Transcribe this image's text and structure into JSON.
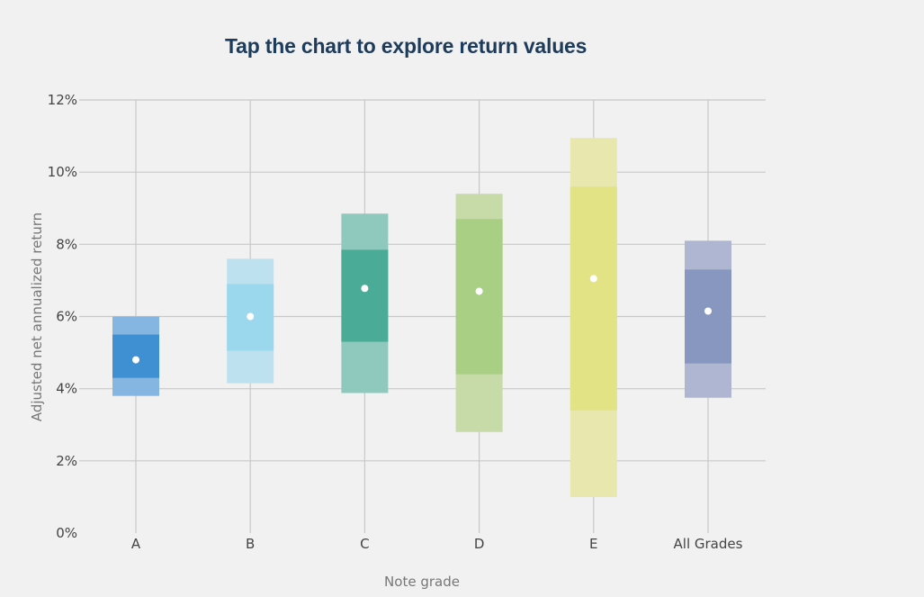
{
  "chart_data": {
    "type": "box",
    "title": "Tap the chart to explore return values",
    "xlabel": "Note grade",
    "ylabel": "Adjusted net annualized return",
    "y_unit": "%",
    "ylim": [
      0,
      12
    ],
    "yticks": [
      0,
      2,
      4,
      6,
      8,
      10,
      12
    ],
    "ytick_labels": [
      "0%",
      "2%",
      "4%",
      "6%",
      "8%",
      "10%",
      "12%"
    ],
    "grid": true,
    "categories": [
      "A",
      "B",
      "C",
      "D",
      "E",
      "All Grades"
    ],
    "boxes": [
      {
        "category": "A",
        "min": 3.8,
        "q1": 4.3,
        "median": 4.8,
        "q3": 5.5,
        "max": 6.0,
        "outer_color": "#85b6e1",
        "inner_color": "#3e90d3"
      },
      {
        "category": "B",
        "min": 4.15,
        "q1": 5.05,
        "median": 6.0,
        "q3": 6.9,
        "max": 7.6,
        "outer_color": "#bde1ef",
        "inner_color": "#9bd8ed"
      },
      {
        "category": "C",
        "min": 3.88,
        "q1": 5.3,
        "median": 6.78,
        "q3": 7.85,
        "max": 8.85,
        "outer_color": "#8fc8bd",
        "inner_color": "#4aab96"
      },
      {
        "category": "D",
        "min": 2.8,
        "q1": 4.4,
        "median": 6.7,
        "q3": 8.7,
        "max": 9.4,
        "outer_color": "#c6dba8",
        "inner_color": "#a8cf84"
      },
      {
        "category": "E",
        "min": 1.0,
        "q1": 3.4,
        "median": 7.05,
        "q3": 9.6,
        "max": 10.95,
        "outer_color": "#e8e8ae",
        "inner_color": "#e2e385"
      },
      {
        "category": "All Grades",
        "min": 3.75,
        "q1": 4.7,
        "median": 6.15,
        "q3": 7.3,
        "max": 8.1,
        "outer_color": "#aeb6d1",
        "inner_color": "#8897c0"
      }
    ]
  }
}
